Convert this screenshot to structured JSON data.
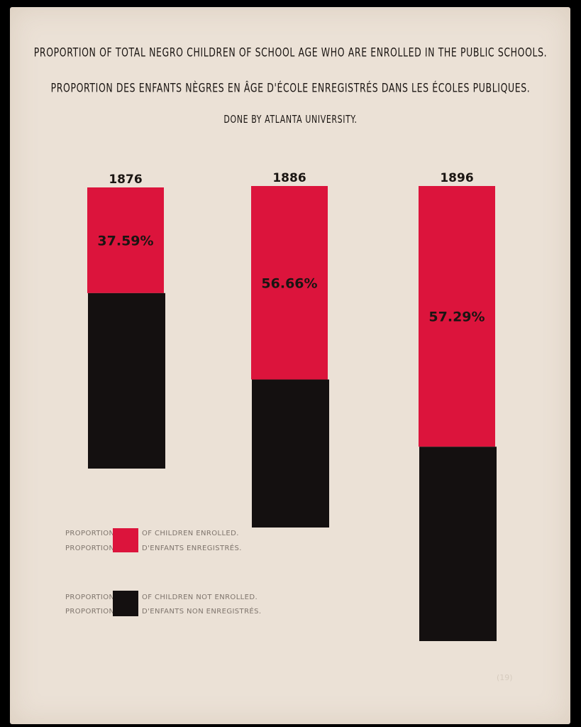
{
  "titles": {
    "line1": "PROPORTION OF TOTAL NEGRO CHILDREN OF SCHOOL AGE WHO ARE ENROLLED IN THE PUBLIC SCHOOLS.",
    "line2": "PROPORTION DES ENFANTS NÈGRES EN ÂGE D'ÉCOLE ENREGISTRÉS DANS LES ÉCOLES PUBLIQUES.",
    "credit": "DONE BY ATLANTA UNIVERSITY."
  },
  "legend": {
    "enrolled": {
      "left": "PROPORTION",
      "right": "OF CHILDREN ENROLLED.",
      "left2": "PROPORTION",
      "right2": "D'ENFANTS ENREGISTRÉS."
    },
    "not_enrolled": {
      "left": "PROPORTION",
      "right": "OF CHILDREN NOT ENROLLED.",
      "left2": "PROPORTION",
      "right2": "D'ENFANTS NON ENREGISTRÉS."
    }
  },
  "page_number": "(19)",
  "colors": {
    "enrolled": "#dc143c",
    "not_enrolled": "#141010",
    "paper": "#ebe1d6"
  },
  "chart_data": {
    "type": "bar",
    "stacked": true,
    "categories": [
      "1876",
      "1886",
      "1896"
    ],
    "series": [
      {
        "name": "Proportion of children enrolled",
        "values": [
          37.59,
          56.66,
          57.29
        ]
      },
      {
        "name": "Proportion of children not enrolled",
        "values": [
          62.41,
          43.34,
          42.71
        ]
      }
    ],
    "data_labels": [
      "37.59%",
      "56.66%",
      "57.29%"
    ],
    "note": "Bar heights in the original grow across years; each bar is split into an enrolled (red) top and not-enrolled (black) bottom."
  }
}
